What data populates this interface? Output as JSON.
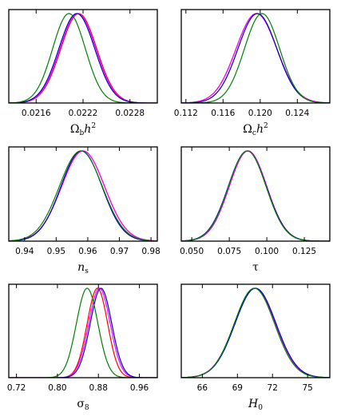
{
  "colors": {
    "red": "#ff0000",
    "magenta": "#ff00ff",
    "blue": "#0000cc",
    "green": "#008000"
  },
  "chart_data": [
    {
      "type": "line",
      "xlabel": {
        "base": "Ω",
        "sub": "b",
        "tail": "h",
        "sup": "2"
      },
      "xlim": [
        0.02125,
        0.02315
      ],
      "ticks": [
        "0.0216",
        "0.0222",
        "0.0228"
      ],
      "tick_values": [
        0.0216,
        0.0222,
        0.0228
      ],
      "series": [
        {
          "color": "red",
          "mean": 0.022145,
          "sigma": 0.00023
        },
        {
          "color": "magenta",
          "mean": 0.022135,
          "sigma": 0.00023
        },
        {
          "color": "blue",
          "mean": 0.02212,
          "sigma": 0.00023
        },
        {
          "color": "green",
          "mean": 0.02202,
          "sigma": 0.00021
        }
      ]
    },
    {
      "type": "line",
      "xlabel": {
        "base": "Ω",
        "sub": "c",
        "tail": "h",
        "sup": "2"
      },
      "xlim": [
        0.1115,
        0.1275
      ],
      "ticks": [
        "0.112",
        "0.116",
        "0.120",
        "0.124"
      ],
      "tick_values": [
        0.112,
        0.116,
        0.12,
        0.124
      ],
      "series": [
        {
          "color": "red",
          "mean": 0.1196,
          "sigma": 0.0022
        },
        {
          "color": "magenta",
          "mean": 0.1196,
          "sigma": 0.0022
        },
        {
          "color": "blue",
          "mean": 0.1197,
          "sigma": 0.0021
        },
        {
          "color": "green",
          "mean": 0.1202,
          "sigma": 0.0019
        }
      ]
    },
    {
      "type": "line",
      "xlabel": {
        "base": "n",
        "sub": "s",
        "tail": "",
        "sup": ""
      },
      "xlim": [
        0.935,
        0.982
      ],
      "ticks": [
        "0.94",
        "0.95",
        "0.96",
        "0.97",
        "0.98"
      ],
      "tick_values": [
        0.94,
        0.95,
        0.96,
        0.97,
        0.98
      ],
      "series": [
        {
          "color": "red",
          "mean": 0.9585,
          "sigma": 0.0068
        },
        {
          "color": "magenta",
          "mean": 0.9585,
          "sigma": 0.0068
        },
        {
          "color": "blue",
          "mean": 0.958,
          "sigma": 0.0065
        },
        {
          "color": "green",
          "mean": 0.9578,
          "sigma": 0.0068
        }
      ]
    },
    {
      "type": "line",
      "xlabel": {
        "base": "τ",
        "sub": "",
        "tail": "",
        "sup": ""
      },
      "xlim": [
        0.043,
        0.142
      ],
      "ticks": [
        "0.050",
        "0.075",
        "0.100",
        "0.125"
      ],
      "tick_values": [
        0.05,
        0.075,
        0.1,
        0.125
      ],
      "series": [
        {
          "color": "red",
          "mean": 0.0875,
          "sigma": 0.0125
        },
        {
          "color": "magenta",
          "mean": 0.0875,
          "sigma": 0.0125
        },
        {
          "color": "blue",
          "mean": 0.087,
          "sigma": 0.0127
        },
        {
          "color": "green",
          "mean": 0.087,
          "sigma": 0.0125
        }
      ]
    },
    {
      "type": "line",
      "xlabel": {
        "base": "σ",
        "sub": "8",
        "tail": "",
        "sup": ""
      },
      "xlim": [
        0.705,
        0.995
      ],
      "ticks": [
        "0.72",
        "0.80",
        "0.88",
        "0.96"
      ],
      "tick_values": [
        0.72,
        0.8,
        0.88,
        0.96
      ],
      "series": [
        {
          "color": "red",
          "mean": 0.878,
          "sigma": 0.02
        },
        {
          "color": "magenta",
          "mean": 0.882,
          "sigma": 0.021
        },
        {
          "color": "blue",
          "mean": 0.885,
          "sigma": 0.021
        },
        {
          "color": "green",
          "mean": 0.858,
          "sigma": 0.021
        }
      ]
    },
    {
      "type": "line",
      "xlabel": {
        "base": "H",
        "sub": "0",
        "tail": "",
        "sup": ""
      },
      "xlim": [
        64.2,
        76.9
      ],
      "ticks": [
        "66",
        "69",
        "72",
        "75"
      ],
      "tick_values": [
        66,
        69,
        72,
        75
      ],
      "series": [
        {
          "color": "red",
          "mean": 70.5,
          "sigma": 1.75
        },
        {
          "color": "magenta",
          "mean": 70.5,
          "sigma": 1.75
        },
        {
          "color": "blue",
          "mean": 70.55,
          "sigma": 1.75
        },
        {
          "color": "green",
          "mean": 70.45,
          "sigma": 1.72
        }
      ]
    }
  ]
}
